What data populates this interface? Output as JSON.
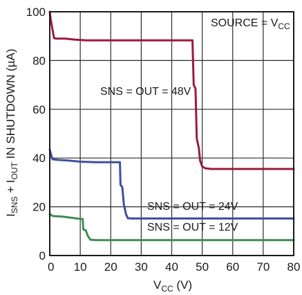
{
  "chart_data": {
    "type": "line",
    "title": "",
    "xlabel": {
      "main": "V",
      "sub": "CC",
      "tail": " (V)"
    },
    "ylabel": {
      "p1": "I",
      "s1": "SNS",
      "p2": " + I",
      "s2": "OUT",
      "p3": " IN SHUTDOWN (µA)"
    },
    "xlim": [
      0,
      80
    ],
    "ylim": [
      0,
      100
    ],
    "xticks": [
      "0",
      "10",
      "20",
      "30",
      "40",
      "50",
      "60",
      "70",
      "80"
    ],
    "yticks": [
      "0",
      "20",
      "40",
      "60",
      "80",
      "100"
    ],
    "grid": true,
    "annotations": {
      "source": {
        "main": "SOURCE = V",
        "sub": "CC"
      },
      "s48": "SNS = OUT = 48V",
      "s24": "SNS = OUT = 24V",
      "s12": "SNS = OUT = 12V"
    },
    "series": [
      {
        "name": "SNS = OUT = 48V",
        "color": "#9b1b3b",
        "points": [
          [
            0,
            100
          ],
          [
            0.3,
            97
          ],
          [
            1.4,
            89.2
          ],
          [
            2,
            89
          ],
          [
            5,
            89
          ],
          [
            8,
            88.6
          ],
          [
            12,
            88.3
          ],
          [
            20,
            88.3
          ],
          [
            30,
            88.3
          ],
          [
            40,
            88.3
          ],
          [
            46.8,
            88.3
          ],
          [
            47.2,
            70
          ],
          [
            47.8,
            68.5
          ],
          [
            48.2,
            48
          ],
          [
            48.9,
            44
          ],
          [
            49.3,
            39
          ],
          [
            50,
            36.5
          ],
          [
            51,
            35.8
          ],
          [
            53,
            35.5
          ],
          [
            60,
            35.5
          ],
          [
            70,
            35.5
          ],
          [
            80,
            35.5
          ]
        ]
      },
      {
        "name": "SNS = OUT = 24V",
        "color": "#3d4fa3",
        "points": [
          [
            0,
            43.5
          ],
          [
            0.3,
            42
          ],
          [
            0.9,
            39.5
          ],
          [
            3,
            39.2
          ],
          [
            6,
            39
          ],
          [
            10,
            38.5
          ],
          [
            15,
            38.3
          ],
          [
            20,
            38.3
          ],
          [
            23,
            38.3
          ],
          [
            23.2,
            29
          ],
          [
            23.8,
            28
          ],
          [
            24.3,
            21
          ],
          [
            25,
            17
          ],
          [
            25.6,
            15.3
          ],
          [
            27,
            15.2
          ],
          [
            40,
            15.2
          ],
          [
            60,
            15.2
          ],
          [
            80,
            15.2
          ]
        ]
      },
      {
        "name": "SNS = OUT = 12V",
        "color": "#3e8c52",
        "points": [
          [
            0,
            17
          ],
          [
            1,
            16.2
          ],
          [
            4,
            16
          ],
          [
            7,
            15.5
          ],
          [
            10,
            15
          ],
          [
            10.8,
            15
          ],
          [
            11,
            10.7
          ],
          [
            11.8,
            10.3
          ],
          [
            12.5,
            8
          ],
          [
            13.3,
            6.5
          ],
          [
            15,
            6.3
          ],
          [
            30,
            6.3
          ],
          [
            50,
            6.3
          ],
          [
            80,
            6.3
          ]
        ]
      }
    ]
  }
}
